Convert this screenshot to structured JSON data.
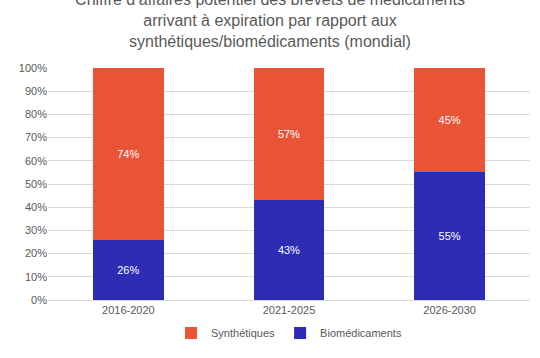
{
  "chart_data": {
    "type": "bar",
    "title": "Chiffre d’affaires potentiel des brevets de médicaments\narrivant à expiration par rapport aux\nsynthétiques/biomédicaments (mondial)",
    "categories": [
      "2016-2020",
      "2021-2025",
      "2026-2030"
    ],
    "series": [
      {
        "name": "Biomédicaments",
        "color": "#2e2bb5",
        "values": [
          26,
          43,
          55
        ],
        "value_labels": [
          "26%",
          "43%",
          "55%"
        ]
      },
      {
        "name": "Synthétiques",
        "color": "#ea5436",
        "values": [
          74,
          57,
          45
        ],
        "value_labels": [
          "74%",
          "57%",
          "45%"
        ]
      }
    ],
    "stacked": true,
    "data_labels": true,
    "legend": "bottom",
    "grid": true,
    "ylim": [
      0,
      100
    ],
    "yticks": [
      {
        "value": 0,
        "label": "0%"
      },
      {
        "value": 10,
        "label": "10%"
      },
      {
        "value": 20,
        "label": "20%"
      },
      {
        "value": 30,
        "label": "30%"
      },
      {
        "value": 40,
        "label": "40%"
      },
      {
        "value": 50,
        "label": "50%"
      },
      {
        "value": 60,
        "label": "60%"
      },
      {
        "value": 70,
        "label": "70%"
      },
      {
        "value": 80,
        "label": "80%"
      },
      {
        "value": 90,
        "label": "90%"
      },
      {
        "value": 100,
        "label": "100%"
      }
    ]
  }
}
